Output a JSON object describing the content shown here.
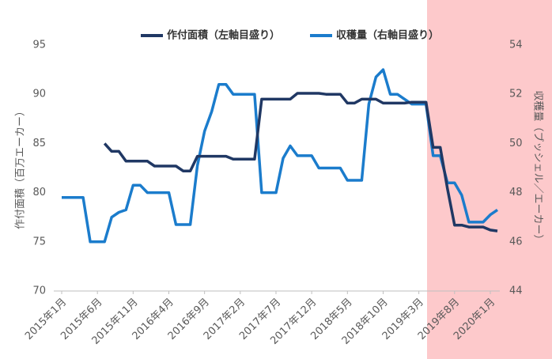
{
  "chart_data": {
    "type": "line",
    "categories": [
      "2015年1月",
      null,
      null,
      null,
      null,
      "2015年6月",
      null,
      null,
      null,
      null,
      "2015年11月",
      null,
      null,
      null,
      null,
      "2016年4月",
      null,
      null,
      null,
      null,
      "2016年9月",
      null,
      null,
      null,
      null,
      "2017年2月",
      null,
      null,
      null,
      null,
      "2017年7月",
      null,
      null,
      null,
      null,
      "2017年12月",
      null,
      null,
      null,
      null,
      "2018年5月",
      null,
      null,
      null,
      null,
      "2018年10月",
      null,
      null,
      null,
      null,
      "2019年3月",
      null,
      null,
      null,
      null,
      "2019年8月",
      null,
      null,
      null,
      null,
      "2020年1月",
      null
    ],
    "ylabel": "作付面積（百万エーカー）",
    "y2label": "収穫量（ブッシェル／エーカー）",
    "ylim": [
      70,
      95
    ],
    "yticks": [
      70,
      75,
      80,
      85,
      90,
      95
    ],
    "y2lim": [
      44,
      54
    ],
    "y2ticks": [
      44,
      46,
      48,
      50,
      52,
      54
    ],
    "legend": "top",
    "series": [
      {
        "name": "作付面積（左軸目盛り）",
        "color": "#203864",
        "axis": "y",
        "values": [
          null,
          null,
          null,
          null,
          null,
          null,
          85.0,
          84.2,
          84.2,
          83.2,
          83.2,
          83.2,
          83.2,
          82.7,
          82.7,
          82.7,
          82.7,
          82.2,
          82.2,
          83.7,
          83.7,
          83.7,
          83.7,
          83.7,
          83.4,
          83.4,
          83.4,
          83.4,
          89.5,
          89.5,
          89.5,
          89.5,
          89.5,
          90.1,
          90.1,
          90.1,
          90.1,
          90.0,
          90.0,
          90.0,
          89.1,
          89.1,
          89.5,
          89.5,
          89.5,
          89.1,
          89.1,
          89.1,
          89.1,
          89.2,
          89.2,
          89.2,
          84.6,
          84.6,
          80.4,
          76.7,
          76.7,
          76.5,
          76.5,
          76.5,
          76.2,
          76.1
        ]
      },
      {
        "name": "収穫量（右軸目盛り）",
        "color": "#1b7ccc",
        "axis": "y2",
        "values": [
          47.8,
          47.8,
          47.8,
          47.8,
          46.0,
          46.0,
          46.0,
          47.0,
          47.2,
          47.3,
          48.3,
          48.3,
          48.0,
          48.0,
          48.0,
          48.0,
          46.7,
          46.7,
          46.7,
          49.1,
          50.5,
          51.3,
          52.4,
          52.4,
          52.0,
          52.0,
          52.0,
          52.0,
          48.0,
          48.0,
          48.0,
          49.4,
          49.9,
          49.5,
          49.5,
          49.5,
          49.0,
          49.0,
          49.0,
          49.0,
          48.5,
          48.5,
          48.5,
          51.6,
          52.7,
          53.0,
          52.0,
          52.0,
          51.8,
          51.6,
          51.6,
          51.6,
          49.5,
          49.5,
          48.4,
          48.4,
          47.9,
          46.8,
          46.8,
          46.8,
          47.1,
          47.3
        ]
      }
    ]
  }
}
